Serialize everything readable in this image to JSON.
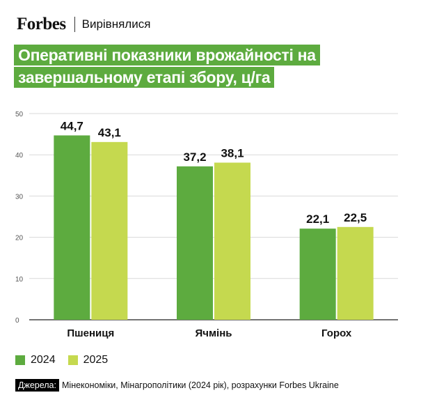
{
  "header": {
    "brand": "Forbes",
    "section": "Вирівнялися"
  },
  "title_lines": [
    "Оперативні показники врожайності на",
    "завершальному етапі збору, ц/га"
  ],
  "colors": {
    "series_2024": "#5dab3f",
    "series_2025": "#c5d94f",
    "title_bg": "#5dab3f"
  },
  "chart_data": {
    "type": "bar",
    "title": "Оперативні показники врожайності на завершальному етапі збору, ц/га",
    "categories": [
      "Пшениця",
      "Ячмінь",
      "Горох"
    ],
    "series": [
      {
        "name": "2024",
        "values": [
          44.7,
          37.2,
          22.1
        ],
        "labels": [
          "44,7",
          "37,2",
          "22,1"
        ]
      },
      {
        "name": "2025",
        "values": [
          43.1,
          38.1,
          22.5
        ],
        "labels": [
          "43,1",
          "38,1",
          "22,5"
        ]
      }
    ],
    "ylim": [
      0,
      50
    ],
    "yticks": [
      0,
      10,
      20,
      30,
      40,
      50
    ],
    "grid": true,
    "legend": "bottom-left"
  },
  "source": {
    "label": "Джерела:",
    "text": "Мінекономіки, Мінагрополітики (2024 рік), розрахунки Forbes Ukraine"
  }
}
